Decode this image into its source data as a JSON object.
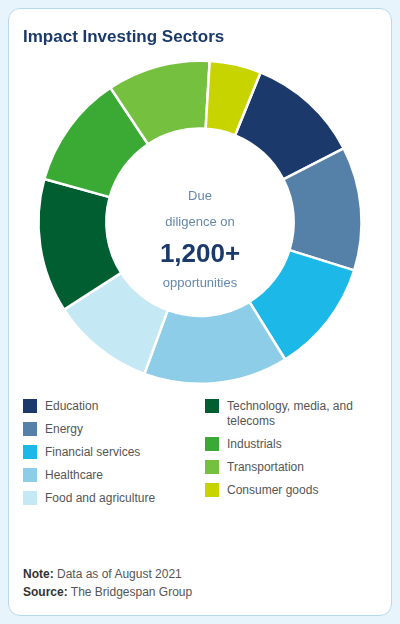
{
  "chart_data": {
    "type": "doughnut",
    "title": "Impact Investing Sectors",
    "categories": [
      "Education",
      "Energy",
      "Financial services",
      "Healthcare",
      "Food and agriculture",
      "Technology, media, and telecoms",
      "Industrials",
      "Transportation",
      "Consumer goods"
    ],
    "values": [
      1.1,
      1.2,
      1.1,
      1.4,
      1.0,
      1.3,
      1.1,
      1.0,
      0.5
    ],
    "colors": [
      "#1b3a6b",
      "#5580a8",
      "#1cb8e8",
      "#8dcde8",
      "#c5e8f5",
      "#005e30",
      "#3aaa35",
      "#76c040",
      "#c8d400"
    ],
    "legend": "bottom",
    "annotations": [
      "Due",
      "diligence on",
      "1,200+",
      "opportunities",
      "Note: Data as of August 2021",
      "Source: The Bridgespan Group"
    ]
  }
}
